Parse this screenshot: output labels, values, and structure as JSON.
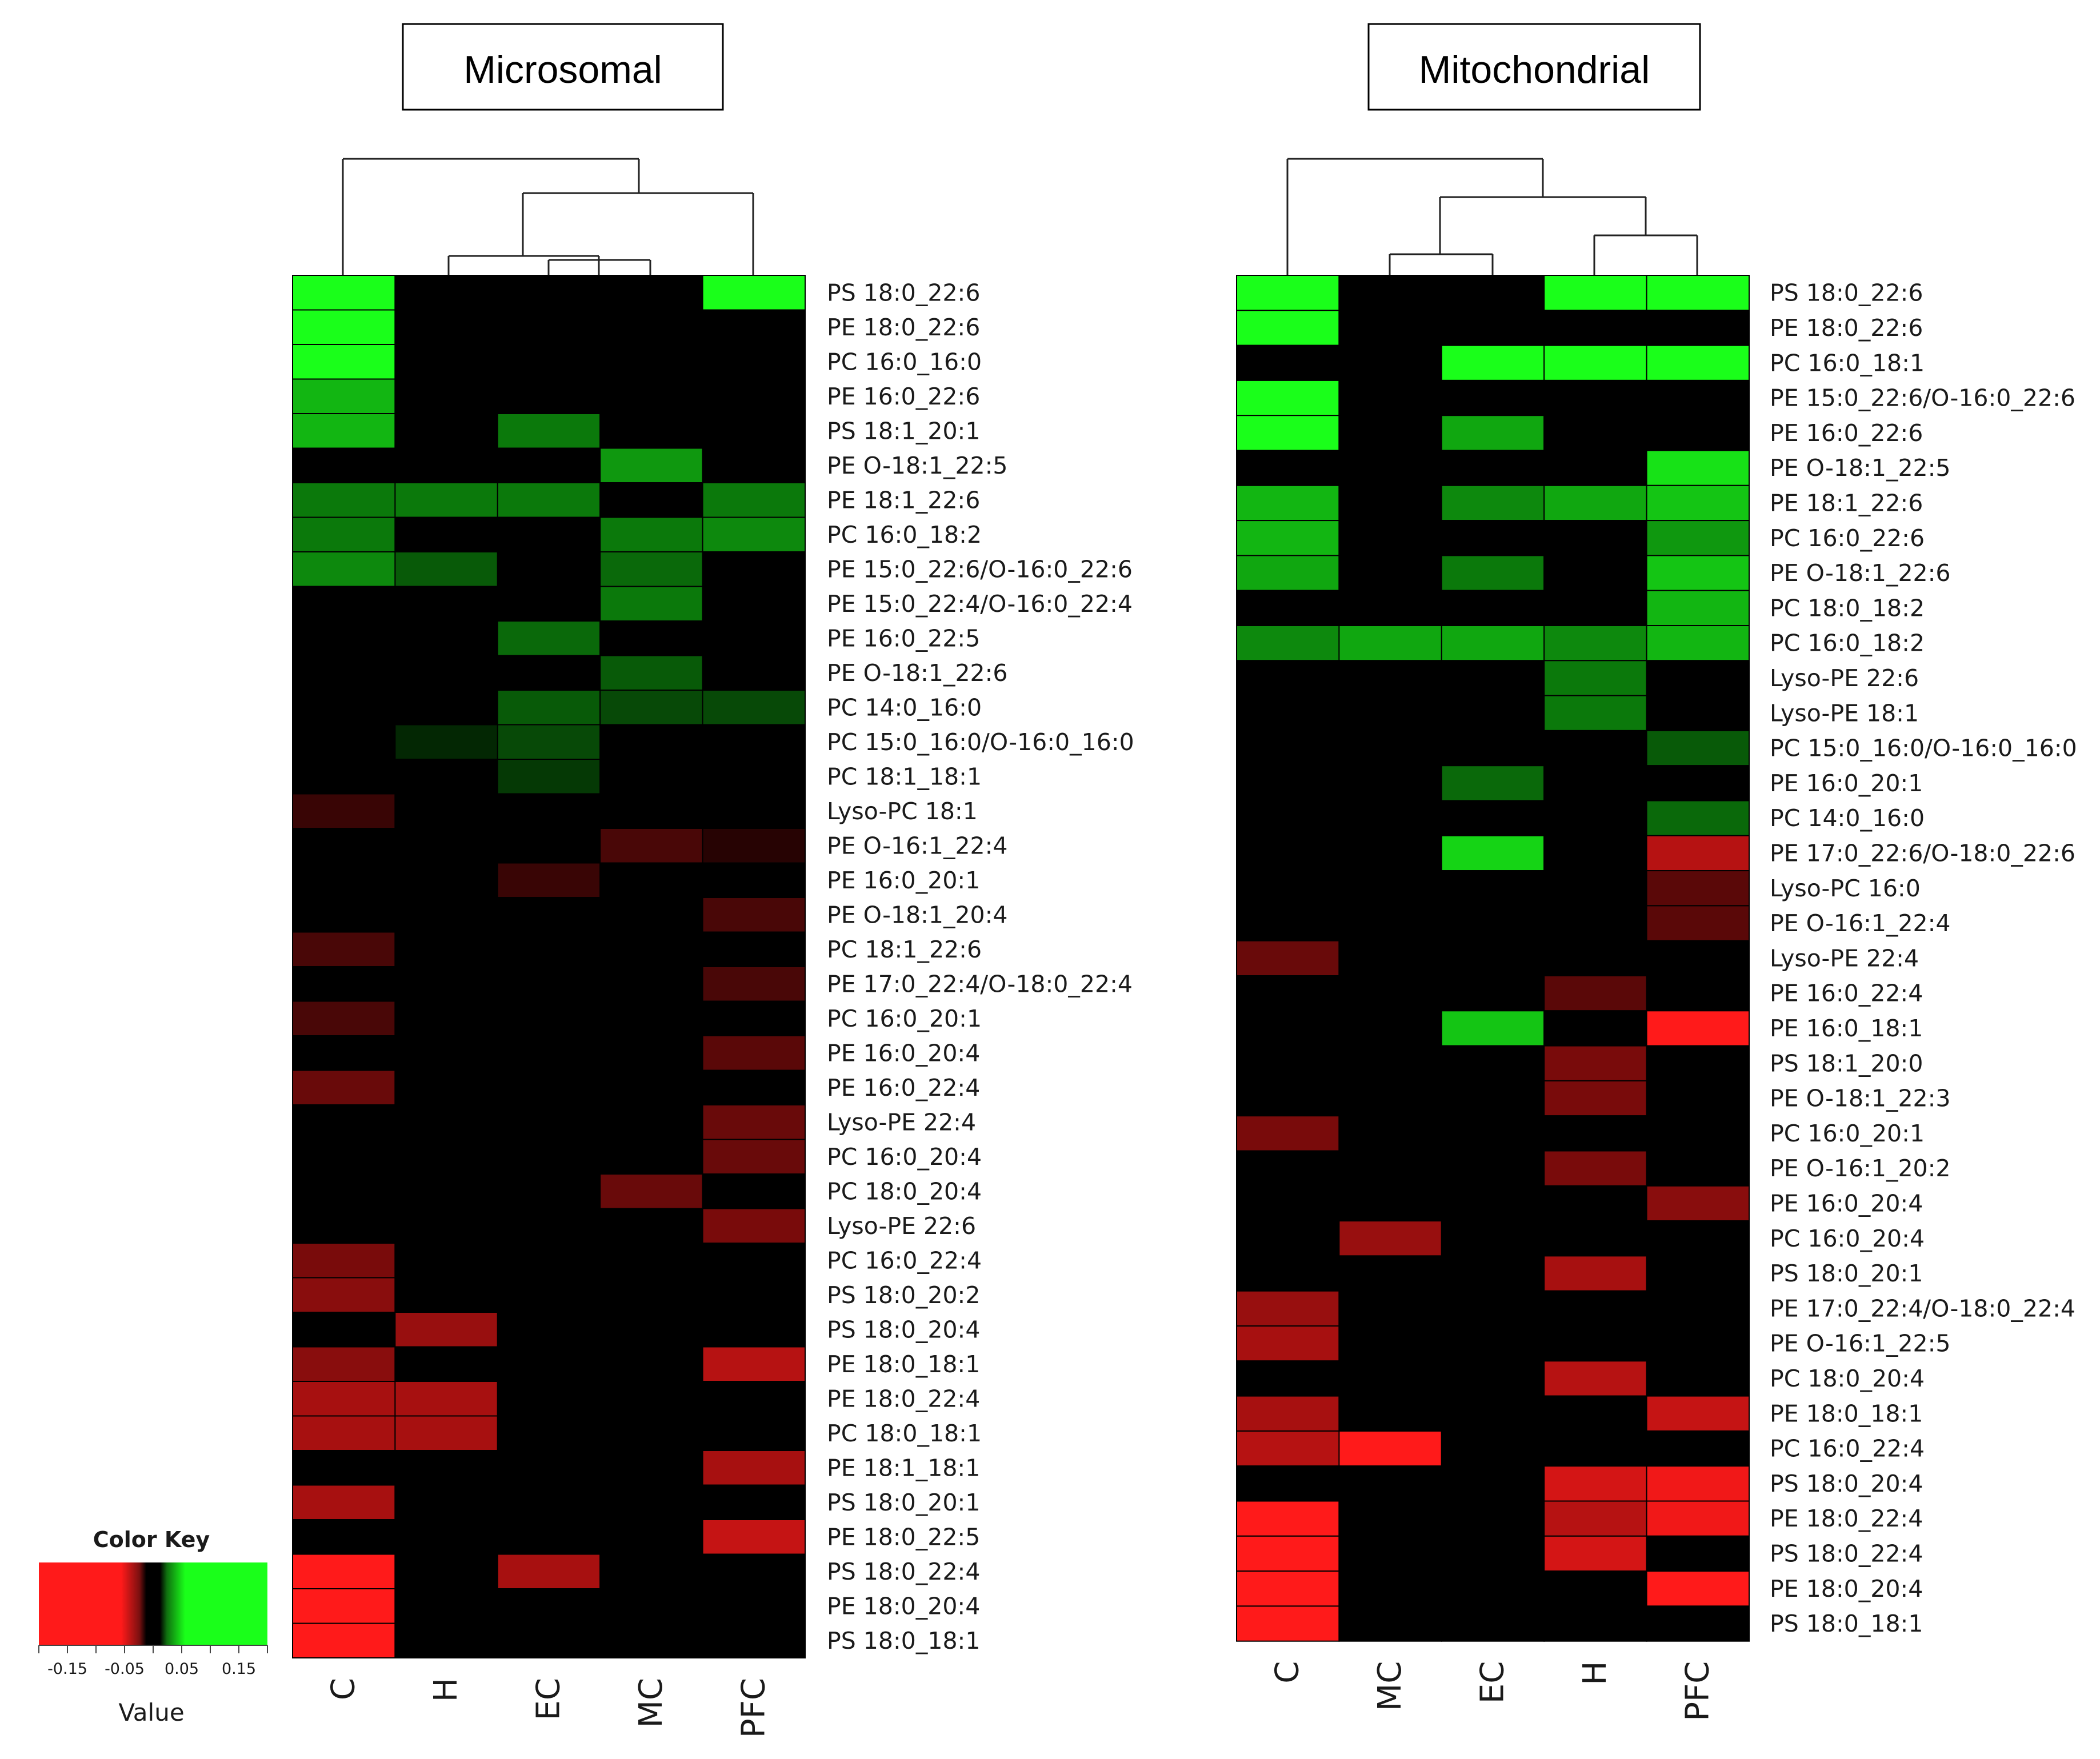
{
  "chart_data": [
    {
      "type": "heatmap",
      "title": "Microsomal",
      "columns": [
        "C",
        "H",
        "EC",
        "MC",
        "PFC"
      ],
      "dendrogram": "C | ((H, (EC, MC)), PFC)",
      "rows": [
        "PS 18:0_22:6",
        "PE 18:0_22:6",
        "PC 16:0_16:0",
        "PE 16:0_22:6",
        "PS 18:1_20:1",
        "PE O-18:1_22:5",
        "PE 18:1_22:6",
        "PC 16:0_18:2",
        "PE 15:0_22:6/O-16:0_22:6",
        "PE 15:0_22:4/O-16:0_22:4",
        "PE 16:0_22:5",
        "PE O-18:1_22:6",
        "PC 14:0_16:0",
        "PC 15:0_16:0/O-16:0_16:0",
        "PC 18:1_18:1",
        "Lyso-PC 18:1",
        "PE O-16:1_22:4",
        "PE 16:0_20:1",
        "PE O-18:1_20:4",
        "PC 18:1_22:6",
        "PE 17:0_22:4/O-18:0_22:4",
        "PC 16:0_20:1",
        "PE 16:0_20:4",
        "PE 16:0_22:4",
        "Lyso-PE 22:4",
        "PC 16:0_20:4",
        "PC 18:0_20:4",
        "Lyso-PE 22:6",
        "PC 16:0_22:4",
        "PS 18:0_20:2",
        "PS 18:0_20:4",
        "PE 18:0_18:1",
        "PE 18:0_22:4",
        "PC 18:0_18:1",
        "PE 18:1_18:1",
        "PS 18:0_20:1",
        "PE 18:0_22:5",
        "PS 18:0_22:4",
        "PE 18:0_20:4",
        "PS 18:0_18:1"
      ],
      "values": [
        [
          0.17,
          0,
          0,
          0,
          0.17
        ],
        [
          0.17,
          0,
          0,
          0,
          0
        ],
        [
          0.17,
          0,
          0,
          0,
          0
        ],
        [
          0.11,
          0,
          0,
          0,
          0
        ],
        [
          0.11,
          0,
          0.07,
          0,
          0
        ],
        [
          0,
          0,
          0,
          0.09,
          0
        ],
        [
          0.07,
          0.07,
          0.07,
          0,
          0.07
        ],
        [
          0.07,
          0,
          0,
          0.07,
          0.08
        ],
        [
          0.08,
          0.05,
          0,
          0.06,
          0
        ],
        [
          0,
          0,
          0,
          0.07,
          0
        ],
        [
          0,
          0,
          0.06,
          0,
          0
        ],
        [
          0,
          0,
          0,
          0.05,
          0
        ],
        [
          0,
          0,
          0.05,
          0.04,
          0.04
        ],
        [
          0,
          0.02,
          0.04,
          0,
          0
        ],
        [
          0,
          0,
          0.03,
          0,
          0
        ],
        [
          -0.03,
          0,
          0,
          0,
          0
        ],
        [
          0,
          0,
          0,
          -0.04,
          -0.02
        ],
        [
          0,
          0,
          -0.03,
          0,
          0
        ],
        [
          0,
          0,
          0,
          0,
          -0.04
        ],
        [
          -0.04,
          0,
          0,
          0,
          0
        ],
        [
          0,
          0,
          0,
          0,
          -0.04
        ],
        [
          -0.04,
          0,
          0,
          0,
          0
        ],
        [
          0,
          0,
          0,
          0,
          -0.05
        ],
        [
          -0.06,
          0,
          0,
          0,
          0
        ],
        [
          0,
          0,
          0,
          0,
          -0.06
        ],
        [
          0,
          0,
          0,
          0,
          -0.06
        ],
        [
          0,
          0,
          0,
          -0.06,
          0
        ],
        [
          0,
          0,
          0,
          0,
          -0.07
        ],
        [
          -0.07,
          0,
          0,
          0,
          0
        ],
        [
          -0.08,
          0,
          0,
          0,
          0
        ],
        [
          0,
          -0.09,
          0,
          0,
          0
        ],
        [
          -0.08,
          0,
          0,
          0,
          -0.11
        ],
        [
          -0.1,
          -0.1,
          0,
          0,
          0
        ],
        [
          -0.1,
          -0.1,
          0,
          0,
          0
        ],
        [
          0,
          0,
          0,
          0,
          -0.1
        ],
        [
          -0.1,
          0,
          0,
          0,
          0
        ],
        [
          0,
          0,
          0,
          0,
          -0.12
        ],
        [
          -0.16,
          0,
          -0.1,
          0,
          0
        ],
        [
          -0.16,
          0,
          0,
          0,
          0
        ],
        [
          -0.16,
          0,
          0,
          0,
          0
        ]
      ]
    },
    {
      "type": "heatmap",
      "title": "Mitochondrial",
      "columns": [
        "C",
        "MC",
        "EC",
        "H",
        "PFC"
      ],
      "dendrogram": "C | ((MC, EC), (H, PFC))",
      "rows": [
        "PS 18:0_22:6",
        "PE 18:0_22:6",
        "PC 16:0_18:1",
        "PE 15:0_22:6/O-16:0_22:6",
        "PE 16:0_22:6",
        "PE O-18:1_22:5",
        "PE 18:1_22:6",
        "PC 16:0_22:6",
        "PE O-18:1_22:6",
        "PC 18:0_18:2",
        "PC 16:0_18:2",
        "Lyso-PE 22:6",
        "Lyso-PE 18:1",
        "PC 15:0_16:0/O-16:0_16:0",
        "PE 16:0_20:1",
        "PC 14:0_16:0",
        "PE 17:0_22:6/O-18:0_22:6",
        "Lyso-PC 16:0",
        "PE O-16:1_22:4",
        "Lyso-PE 22:4",
        "PE 16:0_22:4",
        "PE 16:0_18:1",
        "PS 18:1_20:0",
        "PE O-18:1_22:3",
        "PC 16:0_20:1",
        "PE O-16:1_20:2",
        "PE 16:0_20:4",
        "PC 16:0_20:4",
        "PS 18:0_20:1",
        "PE 17:0_22:4/O-18:0_22:4",
        "PE O-16:1_22:5",
        "PC 18:0_20:4",
        "PE 18:0_18:1",
        "PC 16:0_22:4",
        "PS 18:0_20:4",
        "PE 18:0_22:4",
        "PS 18:0_22:4",
        "PE 18:0_20:4",
        "PS 18:0_18:1"
      ],
      "values": [
        [
          0.17,
          0,
          0,
          0.17,
          0.17
        ],
        [
          0.17,
          0,
          0,
          0,
          0
        ],
        [
          0,
          0,
          0.17,
          0.17,
          0.17
        ],
        [
          0.17,
          0,
          0,
          0,
          0
        ],
        [
          0.17,
          0,
          0.1,
          0,
          0
        ],
        [
          0,
          0,
          0,
          0,
          0.14
        ],
        [
          0.11,
          0,
          0.08,
          0.1,
          0.12
        ],
        [
          0.11,
          0,
          0,
          0,
          0.09
        ],
        [
          0.1,
          0,
          0.07,
          0,
          0.12
        ],
        [
          0,
          0,
          0,
          0,
          0.11
        ],
        [
          0.08,
          0.1,
          0.1,
          0.08,
          0.11
        ],
        [
          0,
          0,
          0,
          0.07,
          0
        ],
        [
          0,
          0,
          0,
          0.07,
          0
        ],
        [
          0,
          0,
          0,
          0,
          0.05
        ],
        [
          0,
          0,
          0.06,
          0,
          0
        ],
        [
          0,
          0,
          0,
          0,
          0.06
        ],
        [
          0,
          0,
          0.13,
          0,
          -0.11
        ],
        [
          0,
          0,
          0,
          0,
          -0.05
        ],
        [
          0,
          0,
          0,
          0,
          -0.05
        ],
        [
          -0.06,
          0,
          0,
          0,
          0
        ],
        [
          0,
          0,
          0,
          -0.05,
          0
        ],
        [
          0,
          0,
          0.12,
          0,
          -0.16
        ],
        [
          0,
          0,
          0,
          -0.07,
          0
        ],
        [
          0,
          0,
          0,
          -0.07,
          0
        ],
        [
          -0.07,
          0,
          0,
          0,
          0
        ],
        [
          0,
          0,
          0,
          -0.07,
          0
        ],
        [
          0,
          0,
          0,
          0,
          -0.08
        ],
        [
          0,
          -0.09,
          0,
          0,
          0
        ],
        [
          -0.0,
          0,
          0,
          -0.1,
          0
        ],
        [
          -0.09,
          0,
          0,
          0,
          0
        ],
        [
          -0.1,
          0,
          0,
          0,
          0
        ],
        [
          0,
          0,
          0,
          -0.11,
          0
        ],
        [
          -0.1,
          0,
          0,
          0,
          -0.12
        ],
        [
          -0.11,
          -0.16,
          0,
          0,
          0
        ],
        [
          0,
          0,
          0,
          -0.13,
          -0.15
        ],
        [
          -0.16,
          0,
          0,
          -0.11,
          -0.15
        ],
        [
          -0.16,
          0,
          0,
          -0.13,
          0
        ],
        [
          -0.16,
          0,
          0,
          0,
          -0.16
        ],
        [
          -0.16,
          0,
          0,
          0,
          0
        ]
      ]
    }
  ],
  "color_key": {
    "title": "Color Key",
    "axis_label": "Value",
    "ticks": [
      "-0.15",
      "-0.05",
      "0.05",
      "0.15"
    ],
    "tick_values": [
      -0.15,
      -0.05,
      0.05,
      0.15
    ],
    "range": [
      -0.2,
      0.2
    ],
    "low_color": "#ff1a1a",
    "mid_color": "#000000",
    "high_color": "#1aff1a"
  }
}
